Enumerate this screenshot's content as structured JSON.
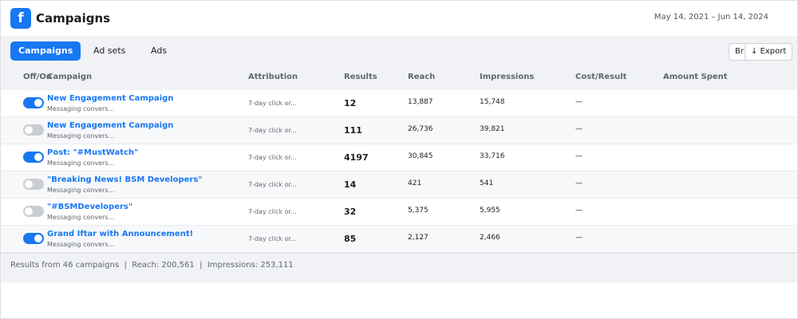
{
  "header": {
    "logo": "f",
    "title": "Campaigns",
    "date_range": "May 14, 2021 – Jun 14, 2024"
  },
  "tabs": [
    {
      "label": "Campaigns",
      "active": true
    },
    {
      "label": "Ad sets",
      "active": false
    },
    {
      "label": "Ads",
      "active": false
    }
  ],
  "buttons": {
    "breakdown": "Br",
    "export": "↓ Export"
  },
  "table": {
    "columns": [
      "Off/On",
      "Campaign",
      "Attribution",
      "Results",
      "Reach",
      "Impressions",
      "Cost/Result",
      "Amount Spent"
    ],
    "rows": [
      {
        "on": true,
        "name": "New Engagement Campaign",
        "sub": "Messaging convers...",
        "attribution": "7-day click or...",
        "results": "12",
        "reach": "13,887",
        "impressions": "15,748",
        "cost": "—"
      },
      {
        "on": false,
        "name": "New Engagement Campaign",
        "sub": "Messaging convers...",
        "attribution": "7-day click or...",
        "results": "111",
        "reach": "26,736",
        "impressions": "39,821",
        "cost": "—"
      },
      {
        "on": true,
        "name": "Post: \"#MustWatch\"",
        "sub": "Messaging convers...",
        "attribution": "7-day click or...",
        "results": "4197",
        "reach": "30,845",
        "impressions": "33,716",
        "cost": "—"
      },
      {
        "on": false,
        "name": "\"Breaking News! BSM Developers\"",
        "sub": "Messaging convers...",
        "attribution": "7-day click or...",
        "results": "14",
        "reach": "421",
        "impressions": "541",
        "cost": "—"
      },
      {
        "on": false,
        "name": "\"#BSMDevelopers\"",
        "sub": "Messaging convers...",
        "attribution": "7-day click or...",
        "results": "32",
        "reach": "5,375",
        "impressions": "5,955",
        "cost": "—"
      },
      {
        "on": true,
        "name": "Grand Iftar with Announcement!",
        "sub": "Messaging convers...",
        "attribution": "7-day click or...",
        "results": "85",
        "reach": "2,127",
        "impressions": "2,466",
        "cost": "—"
      }
    ]
  },
  "footer": "Results from 46 campaigns  |  Reach: 200,561  |  Impressions: 253,111"
}
